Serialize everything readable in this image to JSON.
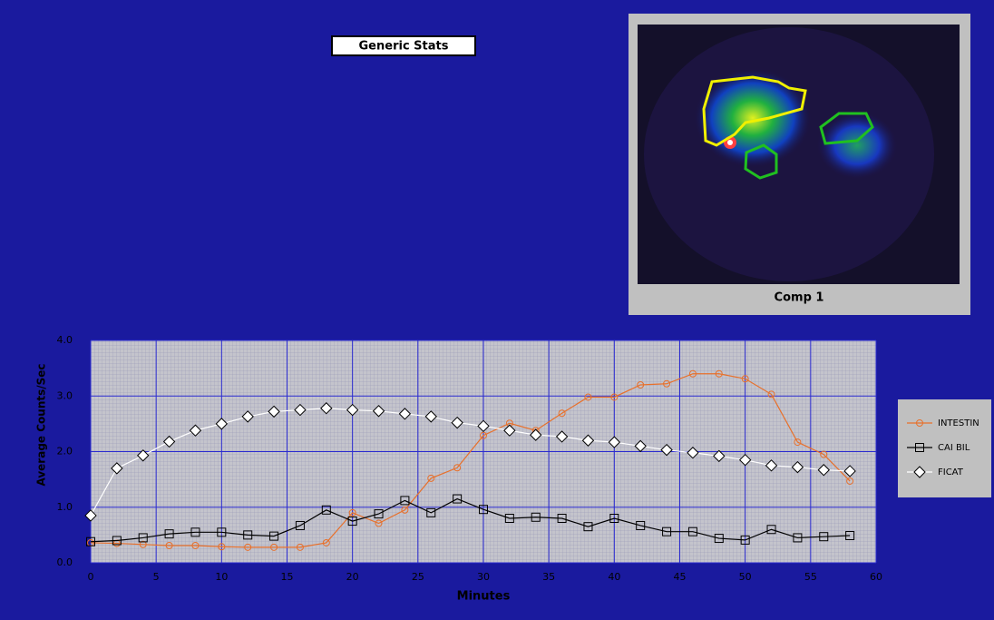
{
  "header": {
    "button": "Generic Stats"
  },
  "image_panel": {
    "caption": "Comp 1"
  },
  "chart_data": {
    "type": "line",
    "x_label": "Minutes",
    "y_label": "Average Counts/Sec",
    "x": [
      0,
      2,
      4,
      6,
      8,
      10,
      12,
      14,
      16,
      18,
      20,
      22,
      24,
      26,
      28,
      30,
      32,
      34,
      36,
      38,
      40,
      42,
      44,
      46,
      48,
      50,
      52,
      54,
      56,
      58
    ],
    "series": [
      {
        "name": "INTESTIN",
        "color": "#e8702a",
        "marker": "circle",
        "values": [
          0.36,
          0.35,
          0.33,
          0.31,
          0.31,
          0.29,
          0.28,
          0.28,
          0.28,
          0.36,
          0.9,
          0.71,
          0.95,
          1.52,
          1.71,
          2.29,
          2.51,
          2.38,
          2.69,
          2.98,
          2.98,
          3.2,
          3.22,
          3.4,
          3.4,
          3.31,
          3.03,
          2.17,
          1.95,
          1.47
        ]
      },
      {
        "name": "CAI BIL",
        "color": "#000000",
        "marker": "square",
        "values": [
          0.38,
          0.4,
          0.45,
          0.52,
          0.55,
          0.55,
          0.5,
          0.48,
          0.67,
          0.95,
          0.75,
          0.88,
          1.12,
          0.9,
          1.15,
          0.96,
          0.8,
          0.82,
          0.8,
          0.65,
          0.8,
          0.67,
          0.56,
          0.56,
          0.44,
          0.41,
          0.6,
          0.45,
          0.47,
          0.49
        ]
      },
      {
        "name": "FICAT",
        "color": "#ffffff",
        "marker": "diamond",
        "values": [
          0.85,
          1.7,
          1.93,
          2.18,
          2.38,
          2.5,
          2.63,
          2.72,
          2.75,
          2.78,
          2.75,
          2.73,
          2.68,
          2.63,
          2.52,
          2.46,
          2.38,
          2.3,
          2.27,
          2.2,
          2.17,
          2.1,
          2.03,
          1.98,
          1.92,
          1.85,
          1.75,
          1.72,
          1.67,
          1.65
        ]
      }
    ],
    "xlim": [
      0,
      60
    ],
    "ylim": [
      0,
      4
    ],
    "xticks": [
      0,
      5,
      10,
      15,
      20,
      25,
      30,
      35,
      40,
      45,
      50,
      55,
      60
    ],
    "yticks": [
      {
        "value": 0,
        "label": "0.0"
      },
      {
        "value": 1,
        "label": "1.0"
      },
      {
        "value": 2,
        "label": "2.0"
      },
      {
        "value": 3,
        "label": "3.0"
      },
      {
        "value": 4,
        "label": "4.0"
      }
    ],
    "grid": true,
    "legend": "right"
  }
}
